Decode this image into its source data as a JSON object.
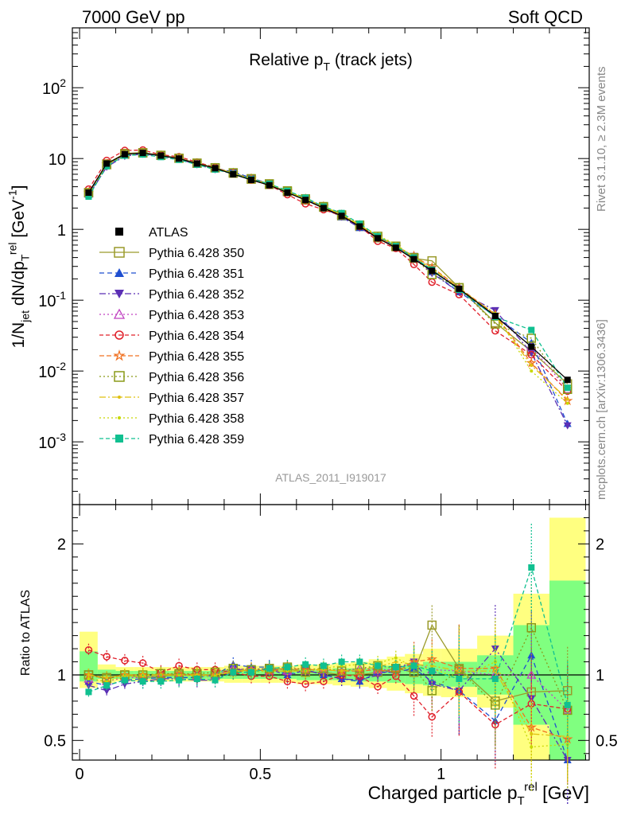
{
  "header": {
    "left": "7000 GeV pp",
    "right": "Soft QCD"
  },
  "side": {
    "rivet": "Rivet 3.1.10, ≥ 2.3M events",
    "mcplots": "mcplots.cern.ch [arXiv:1306.3436]"
  },
  "analysis_id": "ATLAS_2011_I919017",
  "colors": {
    "ATLAS": "#000000",
    "350": "#9a9a2a",
    "351": "#1f4fd0",
    "352": "#5b2fb5",
    "353": "#c040c0",
    "354": "#e0202a",
    "355": "#f07020",
    "356": "#8a9a18",
    "357": "#e0c010",
    "358": "#c8d800",
    "359": "#10c090",
    "band_yellow": "#ffff80",
    "band_green": "#80ff80"
  },
  "chart_data": [
    {
      "type": "line",
      "title": "Relative p_T (track jets)",
      "ylabel": "1/N_jet dN/dp_T^rel [GeV^-1]",
      "yscale": "log",
      "ylim": [
        0.00013,
        700
      ],
      "xlim": [
        -0.02,
        1.41
      ],
      "y_ticks": [
        "10^-3",
        "10^-2",
        "10^-1",
        "1",
        "10",
        "10^2"
      ],
      "legend_position": "middle-left",
      "x": [
        0.025,
        0.075,
        0.125,
        0.175,
        0.225,
        0.275,
        0.325,
        0.375,
        0.425,
        0.475,
        0.525,
        0.575,
        0.625,
        0.675,
        0.725,
        0.775,
        0.825,
        0.875,
        0.925,
        0.975,
        1.05,
        1.15,
        1.25,
        1.35
      ],
      "series": [
        {
          "name": "ATLAS",
          "values": [
            3.3,
            8.5,
            11.5,
            12,
            11,
            10,
            8.5,
            7.3,
            6.0,
            5.0,
            4.2,
            3.3,
            2.6,
            2.0,
            1.55,
            1.1,
            0.75,
            0.55,
            0.38,
            0.26,
            0.145,
            0.06,
            0.022,
            0.0075
          ]
        },
        {
          "name": "Pythia 6.428 350",
          "values": [
            3.3,
            8.4,
            11.8,
            12.1,
            11.1,
            10.1,
            8.6,
            7.4,
            6.2,
            5.1,
            4.3,
            3.4,
            2.6,
            2.05,
            1.55,
            1.1,
            0.76,
            0.57,
            0.39,
            0.36,
            0.15,
            0.048,
            0.019,
            0.0066
          ]
        },
        {
          "name": "Pythia 6.428 351",
          "values": [
            3.1,
            8.0,
            11.2,
            11.8,
            11.0,
            9.9,
            8.4,
            7.3,
            6.5,
            5.3,
            4.4,
            3.3,
            2.7,
            2.0,
            1.5,
            1.05,
            0.77,
            0.56,
            0.4,
            0.25,
            0.13,
            0.06,
            0.025,
            0.0018
          ]
        },
        {
          "name": "Pythia 6.428 352",
          "values": [
            3.0,
            7.6,
            10.8,
            11.6,
            10.8,
            9.8,
            8.2,
            7.0,
            6.3,
            5.2,
            4.4,
            3.3,
            2.7,
            2.0,
            1.5,
            1.05,
            0.75,
            0.58,
            0.42,
            0.24,
            0.13,
            0.072,
            0.018,
            0.0017
          ]
        },
        {
          "name": "Pythia 6.428 353",
          "values": [
            3.2,
            8.0,
            11.3,
            11.9,
            11.0,
            10.0,
            8.4,
            7.2,
            6.3,
            5.2,
            4.3,
            3.4,
            2.7,
            2.1,
            1.6,
            1.15,
            0.78,
            0.57,
            0.42,
            0.27,
            0.15,
            0.06,
            0.022,
            0.0055
          ]
        },
        {
          "name": "Pythia 6.428 354",
          "values": [
            3.7,
            9.4,
            13.0,
            13.2,
            11.3,
            10.6,
            8.9,
            7.5,
            6.1,
            5.0,
            4.2,
            3.1,
            2.3,
            1.9,
            1.55,
            1.1,
            0.68,
            0.54,
            0.32,
            0.18,
            0.12,
            0.037,
            0.017,
            0.0052
          ]
        },
        {
          "name": "Pythia 6.428 355",
          "values": [
            3.3,
            8.3,
            11.6,
            12.0,
            11.0,
            10.1,
            8.5,
            7.3,
            6.2,
            5.2,
            4.3,
            3.4,
            2.7,
            2.1,
            1.6,
            1.13,
            0.78,
            0.56,
            0.42,
            0.29,
            0.15,
            0.063,
            0.013,
            0.0038
          ]
        },
        {
          "name": "Pythia 6.428 356",
          "values": [
            3.3,
            8.2,
            11.5,
            12.0,
            11.1,
            10.1,
            8.6,
            7.4,
            6.3,
            5.2,
            4.4,
            3.5,
            2.7,
            2.1,
            1.6,
            1.15,
            0.8,
            0.58,
            0.4,
            0.23,
            0.15,
            0.046,
            0.029,
            0.0055
          ]
        },
        {
          "name": "Pythia 6.428 357",
          "values": [
            3.3,
            8.3,
            11.6,
            12.0,
            11.0,
            10.0,
            8.5,
            7.3,
            6.2,
            5.2,
            4.3,
            3.4,
            2.7,
            2.1,
            1.6,
            1.15,
            0.8,
            0.6,
            0.41,
            0.28,
            0.15,
            0.06,
            0.012,
            0.004
          ]
        },
        {
          "name": "Pythia 6.428 358",
          "values": [
            3.2,
            8.1,
            11.4,
            11.9,
            11.0,
            10.0,
            8.4,
            7.2,
            6.2,
            5.1,
            4.3,
            3.4,
            2.7,
            2.1,
            1.65,
            1.18,
            0.82,
            0.62,
            0.4,
            0.27,
            0.14,
            0.065,
            0.01,
            0.0035
          ]
        },
        {
          "name": "Pythia 6.428 359",
          "values": [
            2.9,
            7.8,
            11.0,
            11.4,
            10.5,
            9.6,
            8.2,
            7.0,
            6.1,
            5.1,
            4.4,
            3.5,
            2.8,
            2.1,
            1.7,
            1.2,
            0.8,
            0.58,
            0.4,
            0.27,
            0.14,
            0.058,
            0.038,
            0.0058
          ]
        }
      ]
    },
    {
      "type": "line",
      "xlabel": "Charged particle p_T^rel [GeV]",
      "ylabel": "Ratio to ATLAS",
      "ylim": [
        0.35,
        2.3
      ],
      "xlim": [
        -0.02,
        1.41
      ],
      "x_ticks": [
        "0",
        "0.5",
        "1"
      ],
      "y_ticks": [
        "0.5",
        "1",
        "2"
      ],
      "x": [
        0.025,
        0.075,
        0.125,
        0.175,
        0.225,
        0.275,
        0.325,
        0.375,
        0.425,
        0.475,
        0.525,
        0.575,
        0.625,
        0.675,
        0.725,
        0.775,
        0.825,
        0.875,
        0.925,
        0.975,
        1.05,
        1.15,
        1.25,
        1.35
      ],
      "bands": {
        "edges": [
          0,
          0.05,
          0.1,
          0.15,
          0.2,
          0.25,
          0.3,
          0.35,
          0.4,
          0.45,
          0.5,
          0.55,
          0.6,
          0.65,
          0.7,
          0.75,
          0.8,
          0.85,
          0.9,
          0.95,
          1.0,
          1.1,
          1.2,
          1.3,
          1.4
        ],
        "yellow": [
          [
            0.9,
            1.33
          ],
          [
            0.94,
            1.08
          ],
          [
            0.95,
            1.06
          ],
          [
            0.95,
            1.06
          ],
          [
            0.95,
            1.06
          ],
          [
            0.95,
            1.06
          ],
          [
            0.95,
            1.06
          ],
          [
            0.95,
            1.06
          ],
          [
            0.94,
            1.07
          ],
          [
            0.94,
            1.07
          ],
          [
            0.94,
            1.07
          ],
          [
            0.94,
            1.07
          ],
          [
            0.93,
            1.08
          ],
          [
            0.93,
            1.08
          ],
          [
            0.92,
            1.09
          ],
          [
            0.91,
            1.1
          ],
          [
            0.9,
            1.12
          ],
          [
            0.88,
            1.14
          ],
          [
            0.86,
            1.16
          ],
          [
            0.84,
            1.2
          ],
          [
            0.83,
            1.2
          ],
          [
            0.75,
            1.3
          ],
          [
            0.35,
            1.62
          ],
          [
            0.35,
            2.2
          ]
        ],
        "green": [
          [
            0.95,
            1.18
          ],
          [
            0.97,
            1.04
          ],
          [
            0.97,
            1.03
          ],
          [
            0.97,
            1.03
          ],
          [
            0.97,
            1.03
          ],
          [
            0.97,
            1.03
          ],
          [
            0.97,
            1.03
          ],
          [
            0.97,
            1.03
          ],
          [
            0.97,
            1.04
          ],
          [
            0.97,
            1.04
          ],
          [
            0.97,
            1.04
          ],
          [
            0.97,
            1.04
          ],
          [
            0.96,
            1.04
          ],
          [
            0.96,
            1.04
          ],
          [
            0.96,
            1.05
          ],
          [
            0.95,
            1.05
          ],
          [
            0.95,
            1.06
          ],
          [
            0.94,
            1.07
          ],
          [
            0.93,
            1.08
          ],
          [
            0.92,
            1.1
          ],
          [
            0.91,
            1.1
          ],
          [
            0.85,
            1.15
          ],
          [
            0.62,
            1.38
          ],
          [
            0.35,
            1.72
          ]
        ]
      },
      "series": [
        {
          "name": "Pythia 6.428 350",
          "values": [
            1.0,
            0.98,
            1.0,
            0.98,
            0.99,
            1.0,
            1.0,
            1.0,
            1.04,
            1.03,
            1.04,
            1.05,
            1.02,
            1.02,
            1.0,
            1.0,
            1.02,
            1.05,
            1.02,
            1.38,
            1.05,
            0.8,
            0.87,
            0.88
          ]
        },
        {
          "name": "Pythia 6.428 351",
          "values": [
            0.95,
            0.92,
            0.96,
            0.97,
            0.98,
            0.98,
            0.98,
            1.0,
            1.08,
            1.06,
            1.06,
            1.0,
            1.04,
            1.0,
            0.97,
            0.95,
            1.02,
            1.02,
            1.05,
            0.95,
            0.88,
            0.65,
            1.15,
            0.25
          ]
        },
        {
          "name": "Pythia 6.428 352",
          "values": [
            0.92,
            0.88,
            0.93,
            0.95,
            0.97,
            0.97,
            0.96,
            0.96,
            1.04,
            1.04,
            1.05,
            0.99,
            1.04,
            1.0,
            0.97,
            0.96,
            1.0,
            1.05,
            1.1,
            0.93,
            0.88,
            1.2,
            0.82,
            0.23
          ]
        },
        {
          "name": "Pythia 6.428 353",
          "values": [
            0.97,
            0.95,
            0.98,
            0.98,
            1.0,
            1.0,
            0.99,
            0.99,
            1.05,
            1.04,
            1.03,
            1.03,
            1.03,
            1.04,
            1.03,
            1.05,
            1.04,
            1.04,
            1.1,
            1.04,
            1.03,
            1.0,
            1.0,
            0.73
          ]
        },
        {
          "name": "Pythia 6.428 354",
          "values": [
            1.19,
            1.14,
            1.11,
            1.09,
            1.02,
            1.07,
            1.04,
            1.04,
            1.02,
            0.99,
            0.99,
            0.95,
            0.93,
            0.95,
            1.0,
            0.99,
            0.91,
            0.99,
            0.84,
            0.68,
            0.87,
            0.62,
            0.78,
            0.74
          ]
        },
        {
          "name": "Pythia 6.428 355",
          "values": [
            1.0,
            0.97,
            1.0,
            1.0,
            1.0,
            1.01,
            1.0,
            1.0,
            1.02,
            1.04,
            1.03,
            1.05,
            1.04,
            1.04,
            1.03,
            1.03,
            1.04,
            1.02,
            1.1,
            1.12,
            1.05,
            1.05,
            0.6,
            0.51
          ]
        },
        {
          "name": "Pythia 6.428 356",
          "values": [
            1.0,
            0.97,
            1.0,
            1.0,
            1.01,
            1.01,
            1.01,
            1.02,
            1.05,
            1.04,
            1.05,
            1.06,
            1.04,
            1.05,
            1.03,
            1.05,
            1.07,
            1.05,
            1.05,
            0.88,
            1.04,
            0.77,
            1.36,
            0.73
          ]
        },
        {
          "name": "Pythia 6.428 357",
          "values": [
            1.0,
            0.98,
            1.0,
            1.0,
            1.0,
            1.0,
            1.0,
            1.0,
            1.03,
            1.04,
            1.03,
            1.03,
            1.03,
            1.04,
            1.03,
            1.04,
            1.06,
            1.1,
            1.08,
            1.07,
            1.03,
            1.03,
            0.55,
            0.53
          ]
        },
        {
          "name": "Pythia 6.428 358",
          "values": [
            0.97,
            0.95,
            0.99,
            0.99,
            1.0,
            1.0,
            0.99,
            0.99,
            1.03,
            1.02,
            1.03,
            1.03,
            1.03,
            1.05,
            1.07,
            1.08,
            1.09,
            1.13,
            1.06,
            1.05,
            0.97,
            1.1,
            0.45,
            0.47
          ]
        },
        {
          "name": "Pythia 6.428 359",
          "values": [
            0.87,
            0.92,
            0.96,
            0.95,
            0.95,
            0.96,
            0.97,
            0.96,
            1.02,
            1.02,
            1.05,
            1.06,
            1.08,
            1.07,
            1.1,
            1.1,
            1.07,
            1.06,
            1.07,
            1.03,
            0.97,
            0.97,
            1.82,
            0.77
          ]
        }
      ]
    }
  ]
}
